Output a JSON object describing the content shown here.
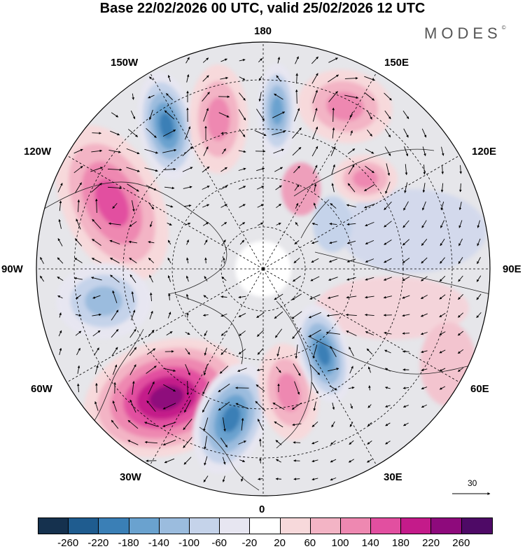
{
  "title": "Base 22/02/2026 00 UTC, valid 25/02/2026 12 UTC",
  "brand": {
    "name": "MODES",
    "mark": "©"
  },
  "map": {
    "projection": "north-polar-stereographic",
    "longitude_labels": {
      "top": "180",
      "bottom": "0",
      "left": "90W",
      "right": "90E",
      "upper_left_1": "150W",
      "upper_left_2": "120W",
      "upper_right_1": "150E",
      "upper_right_2": "120E",
      "lower_left_1": "60W",
      "lower_left_2": "30W",
      "lower_right_1": "60E",
      "lower_right_2": "30E"
    },
    "reference_vector": {
      "value": "30"
    },
    "anomaly_centers": [
      {
        "name": "positive-anomaly-north-atlantic",
        "sign": "positive",
        "peak": 240
      },
      {
        "name": "negative-anomaly-east-greenland",
        "sign": "negative",
        "peak": -200
      },
      {
        "name": "positive-anomaly-scandinavia",
        "sign": "positive",
        "peak": 120
      },
      {
        "name": "negative-anomaly-western-russia",
        "sign": "negative",
        "peak": -180
      },
      {
        "name": "positive-anomaly-north-america",
        "sign": "positive",
        "peak": 160
      },
      {
        "name": "negative-anomaly-gulf-of-alaska",
        "sign": "negative",
        "peak": -180
      },
      {
        "name": "positive-anomaly-bering",
        "sign": "positive",
        "peak": 120
      },
      {
        "name": "negative-anomaly-date-line",
        "sign": "negative",
        "peak": -160
      },
      {
        "name": "positive-anomaly-okhotsk",
        "sign": "positive",
        "peak": 120
      },
      {
        "name": "positive-anomaly-east-siberia",
        "sign": "positive",
        "peak": 120
      },
      {
        "name": "negative-anomaly-hudson-bay",
        "sign": "negative",
        "peak": -100
      }
    ]
  },
  "legend": {
    "colors": [
      "#15314e",
      "#1f5c8f",
      "#3a7fb6",
      "#6aa2cf",
      "#9bbcde",
      "#c5d3ea",
      "#e7e6f1",
      "#ffffff",
      "#f7d9db",
      "#f3b4c5",
      "#ee88b1",
      "#e24fa0",
      "#c41b8a",
      "#8e0a7c",
      "#4e0a66"
    ],
    "ticks": [
      "-260",
      "-220",
      "-180",
      "-140",
      "-100",
      "-60",
      "-20",
      "20",
      "60",
      "100",
      "140",
      "180",
      "220",
      "260"
    ]
  }
}
